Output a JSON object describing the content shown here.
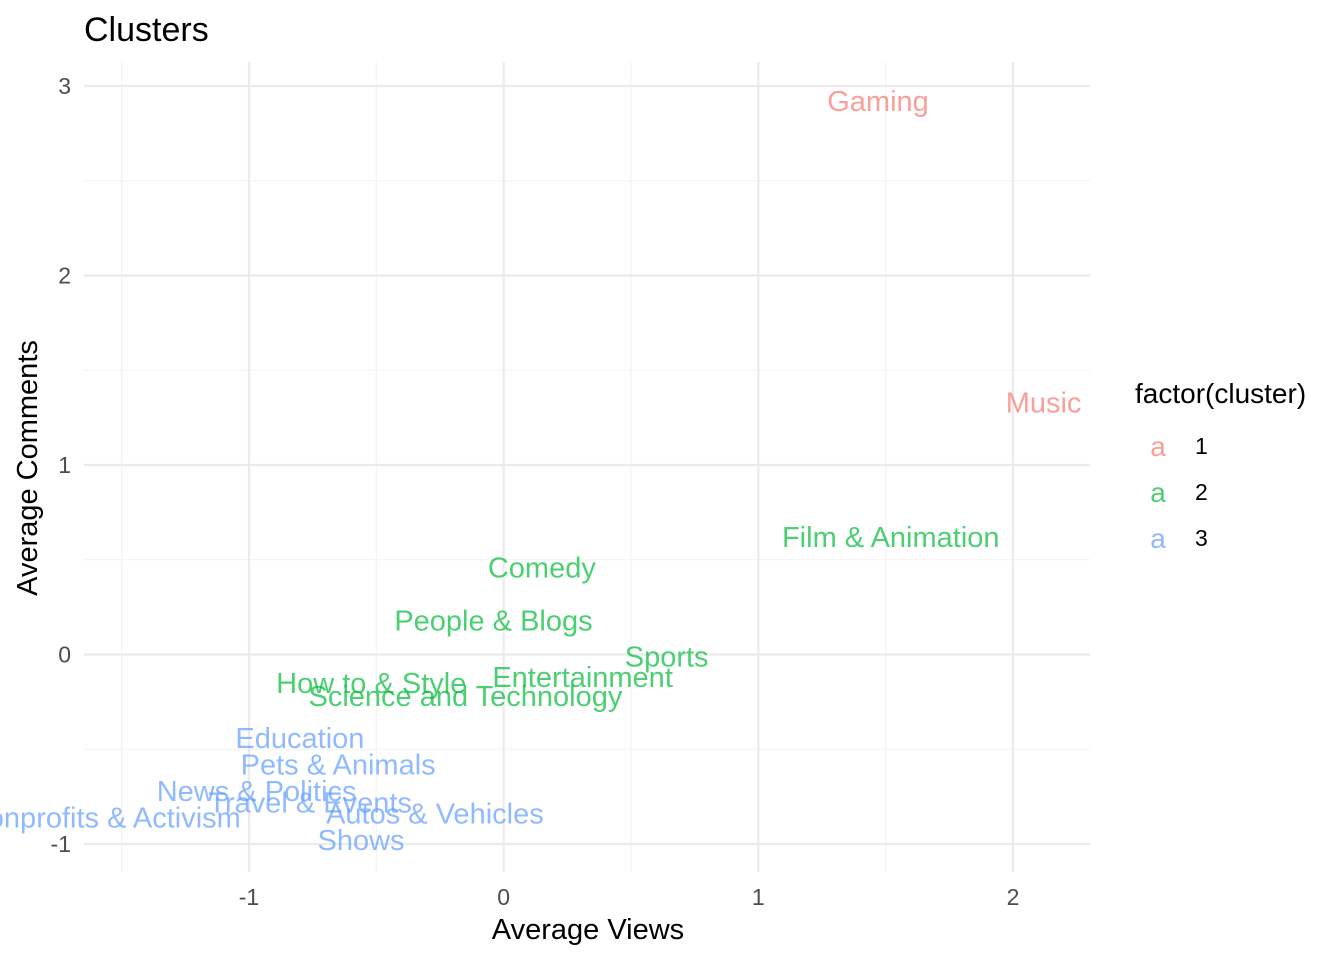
{
  "chart_data": {
    "type": "scatter",
    "title": "Clusters",
    "xlabel": "Average Views",
    "ylabel": "Average Comments",
    "xlim": [
      -1.65,
      2.3
    ],
    "ylim": [
      -1.15,
      3.12
    ],
    "x_ticks": [
      -1,
      0,
      1,
      2
    ],
    "x_tick_labels": [
      "-1",
      "0",
      "1",
      "2"
    ],
    "y_ticks": [
      -1,
      0,
      1,
      2,
      3
    ],
    "y_tick_labels": [
      "-1",
      "0",
      "1",
      "2",
      "3"
    ],
    "grid": true,
    "legend": {
      "title": "factor(cluster)",
      "placement": "right",
      "key_glyph": "a",
      "items": [
        {
          "label": "1",
          "color": "#F8766D"
        },
        {
          "label": "2",
          "color": "#00BA38"
        },
        {
          "label": "3",
          "color": "#619CFF"
        }
      ]
    },
    "label_opacity": 0.7,
    "points": [
      {
        "label": "Gaming",
        "x": 1.47,
        "y": 2.92,
        "cluster": "1"
      },
      {
        "label": "Music",
        "x": 2.12,
        "y": 1.33,
        "cluster": "1"
      },
      {
        "label": "Film & Animation",
        "x": 1.52,
        "y": 0.62,
        "cluster": "2"
      },
      {
        "label": "Comedy",
        "x": 0.15,
        "y": 0.46,
        "cluster": "2"
      },
      {
        "label": "People & Blogs",
        "x": -0.04,
        "y": 0.18,
        "cluster": "2"
      },
      {
        "label": "Sports",
        "x": 0.64,
        "y": -0.01,
        "cluster": "2"
      },
      {
        "label": "Entertainment",
        "x": 0.31,
        "y": -0.12,
        "cluster": "2"
      },
      {
        "label": "How to & Style",
        "x": -0.52,
        "y": -0.15,
        "cluster": "2"
      },
      {
        "label": "Science and Technology",
        "x": -0.15,
        "y": -0.22,
        "cluster": "2"
      },
      {
        "label": "Education",
        "x": -0.8,
        "y": -0.44,
        "cluster": "3"
      },
      {
        "label": "Pets & Animals",
        "x": -0.65,
        "y": -0.58,
        "cluster": "3"
      },
      {
        "label": "News & Politics",
        "x": -0.97,
        "y": -0.72,
        "cluster": "3"
      },
      {
        "label": "Travel & Events",
        "x": -0.76,
        "y": -0.78,
        "cluster": "3"
      },
      {
        "label": "Autos & Vehicles",
        "x": -0.27,
        "y": -0.84,
        "cluster": "3"
      },
      {
        "label": "Nonprofits & Activism",
        "x": -1.57,
        "y": -0.86,
        "cluster": "3"
      },
      {
        "label": "Shows",
        "x": -0.56,
        "y": -0.98,
        "cluster": "3"
      }
    ]
  }
}
